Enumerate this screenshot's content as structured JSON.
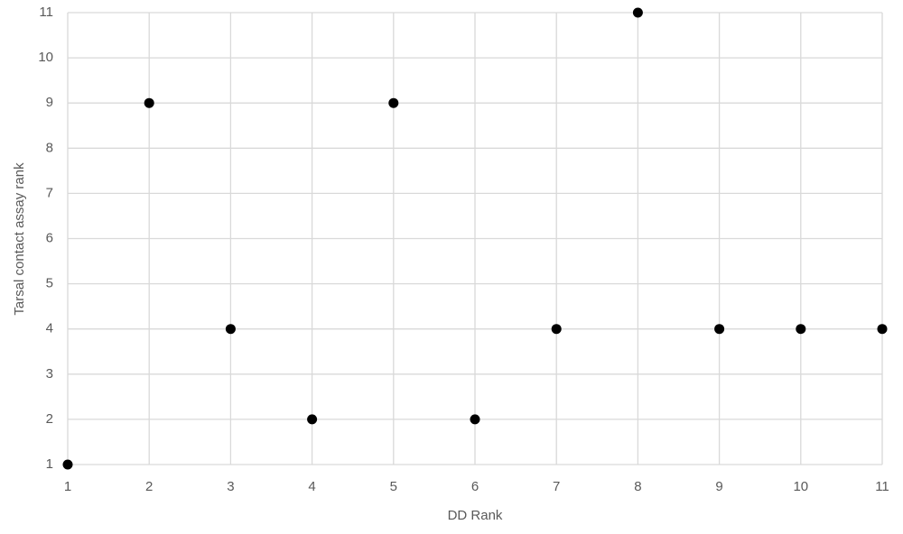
{
  "chart_data": {
    "type": "scatter",
    "x_label": "DD Rank",
    "y_label": "Tarsal contact assay rank",
    "x": [
      1,
      2,
      3,
      4,
      5,
      6,
      7,
      8,
      9,
      10,
      11
    ],
    "values": [
      1,
      9,
      4,
      2,
      9,
      2,
      4,
      11,
      4,
      4,
      4
    ],
    "color": "#000000",
    "xlim": [
      1,
      11
    ],
    "xticks": [
      1,
      2,
      3,
      4,
      5,
      6,
      7,
      8,
      9,
      10,
      11
    ],
    "ylim": [
      1,
      11
    ],
    "yticks": [
      1,
      2,
      3,
      4,
      5,
      6,
      7,
      8,
      9,
      10,
      11
    ],
    "grid": true
  }
}
